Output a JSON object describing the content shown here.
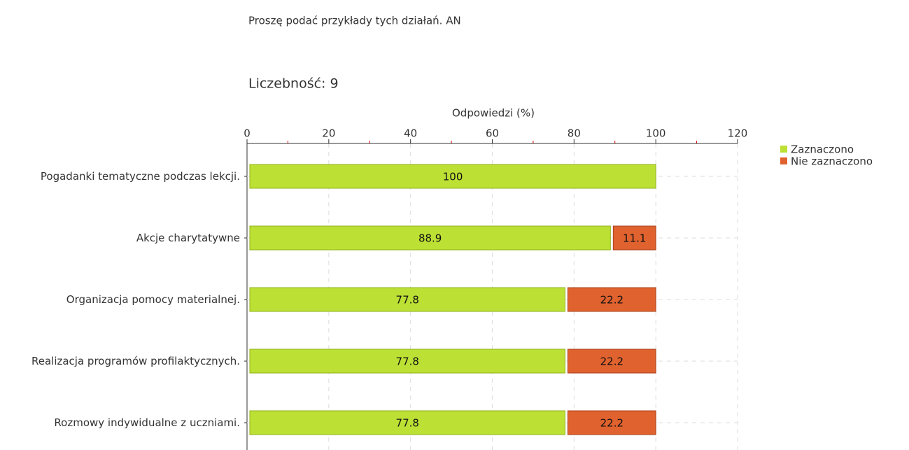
{
  "chart_data": {
    "type": "stacked-bar-horizontal",
    "title": "Proszę podać przykłady tych działań. AN",
    "subtitle": "Liczebność: 9",
    "xlabel": "Odpowiedzi (%)",
    "categories": [
      "Pogadanki tematyczne podczas lekcji.",
      "Akcje charytatywne",
      "Organizacja pomocy materialnej.",
      "Realizacja programów profilaktycznych.",
      "Rozmowy indywidualne z uczniami."
    ],
    "series": [
      {
        "name": "Zaznaczono",
        "color": "#bde035",
        "values": [
          100,
          88.9,
          77.8,
          77.8,
          77.8
        ]
      },
      {
        "name": "Nie zaznaczono",
        "color": "#e0622e",
        "values": [
          0,
          11.1,
          22.2,
          22.2,
          22.2
        ]
      }
    ],
    "xlim": [
      0,
      120
    ],
    "xticks": [
      0,
      20,
      40,
      60,
      80,
      100,
      120
    ],
    "xminor_ticks": [
      10,
      30,
      50,
      70,
      90,
      110
    ],
    "grid": true,
    "legend": "top-right"
  }
}
